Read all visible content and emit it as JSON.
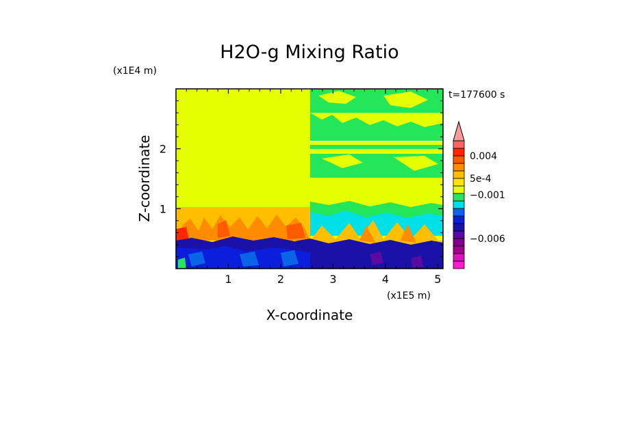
{
  "chart_data": {
    "type": "heatmap",
    "title": "H2O-g Mixing Ratio",
    "xlabel": "X-coordinate",
    "ylabel": "Z-coordinate",
    "x_unit": "(x1E5 m)",
    "y_unit": "(x1E4 m)",
    "time_label": "t=177600 s",
    "x_ticks": [
      "1",
      "2",
      "3",
      "4",
      "5"
    ],
    "y_ticks": [
      "1",
      "2"
    ],
    "xlim": [
      0,
      5.1
    ],
    "ylim": [
      0,
      3.0
    ],
    "colorbar": {
      "levels": [
        -0.009,
        -0.008,
        -0.007,
        -0.006,
        -0.005,
        -0.004,
        -0.003,
        -0.002,
        -0.001,
        -0.0005,
        0,
        0.0005,
        0.001,
        0.002,
        0.003,
        0.004,
        0.005,
        0.006
      ],
      "colors": [
        "#ff1ad0",
        "#e010c0",
        "#a0008c",
        "#80008c",
        "#5a0aa0",
        "#1a12a8",
        "#0a1edc",
        "#0a64e6",
        "#00e0e6",
        "#23e65a",
        "#e6ff00",
        "#ffe600",
        "#ffbe00",
        "#ff8c00",
        "#ff5a00",
        "#ff2800",
        "#ff6464",
        "#ff9a9a"
      ],
      "labels": [
        {
          "text": "0.004",
          "value": 0.0035
        },
        {
          "text": "5e-4",
          "value": 0.00075
        },
        {
          "text": "−0.001",
          "value": -0.00035
        },
        {
          "text": "−0.006",
          "value": -0.0055
        }
      ],
      "extend_max": true
    },
    "field_regions": [
      {
        "x": [
          0.0,
          2.55
        ],
        "z": [
          1.0,
          3.0
        ],
        "level": "yellow"
      },
      {
        "x": [
          2.55,
          5.1
        ],
        "z": [
          0.0,
          3.0
        ],
        "level": "green/yellow bands"
      },
      {
        "x": [
          0.0,
          5.1
        ],
        "z": [
          0.0,
          0.5
        ],
        "level": "blue (negative)"
      },
      {
        "x": [
          0.0,
          5.1
        ],
        "z": [
          0.5,
          1.0
        ],
        "level": "orange/red plumes"
      }
    ]
  }
}
